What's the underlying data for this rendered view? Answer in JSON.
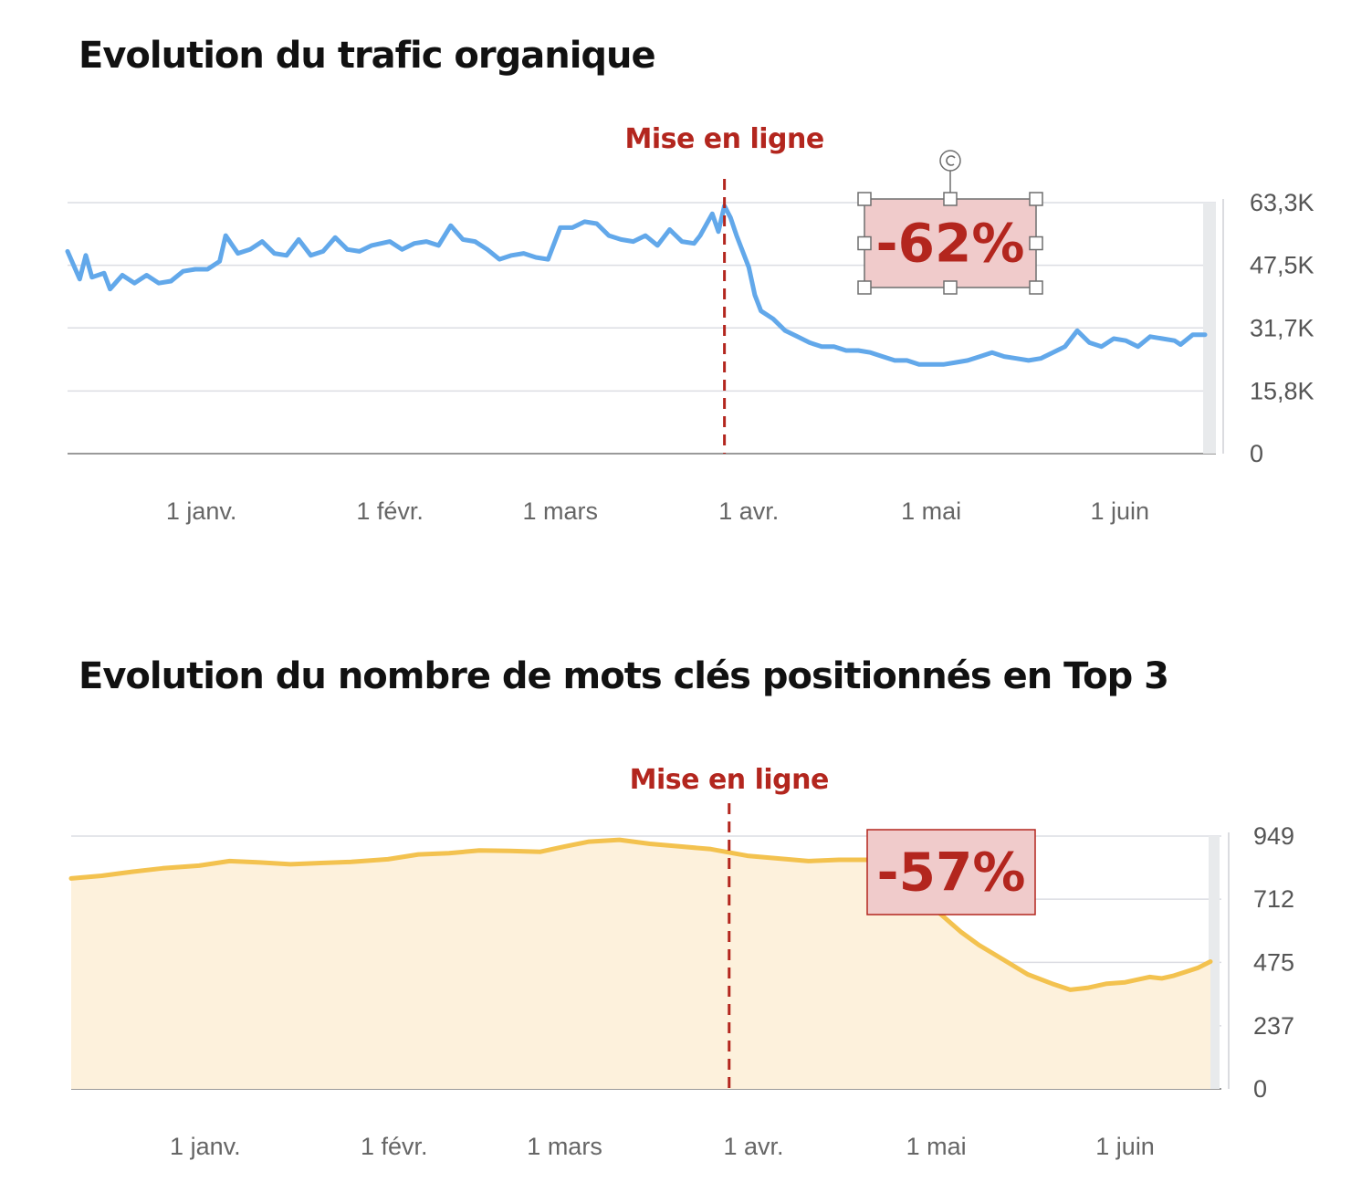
{
  "charts": [
    {
      "title": "Evolution du trafic organique",
      "marker_label": "Mise en ligne",
      "change_badge": "-62%",
      "badge_selected": true,
      "line_color": "#62a8ea",
      "fill_color": null
    },
    {
      "title": "Evolution du nombre de mots clés positionnés en Top 3",
      "marker_label": "Mise en ligne",
      "change_badge": "-57%",
      "badge_selected": false,
      "line_color": "#f3c24f",
      "fill_color": "#fdf1dc"
    }
  ],
  "chart_data": [
    {
      "type": "line",
      "title": "Evolution du trafic organique",
      "x_type": "date",
      "x_range": [
        "2020-12-10",
        "2021-06-15"
      ],
      "x_ticks": [
        {
          "date": "2021-01-01",
          "label": "1 janv."
        },
        {
          "date": "2021-02-01",
          "label": "1 févr."
        },
        {
          "date": "2021-03-01",
          "label": "1 mars"
        },
        {
          "date": "2021-04-01",
          "label": "1 avr."
        },
        {
          "date": "2021-05-01",
          "label": "1 mai"
        },
        {
          "date": "2021-06-01",
          "label": "1 juin"
        }
      ],
      "y_ticks": [
        {
          "value": 0,
          "label": "0"
        },
        {
          "value": 15800,
          "label": "15,8K"
        },
        {
          "value": 31700,
          "label": "31,7K"
        },
        {
          "value": 47500,
          "label": "47,5K"
        },
        {
          "value": 63300,
          "label": "63,3K"
        }
      ],
      "ylim": [
        0,
        63300
      ],
      "grid": true,
      "annotations": [
        {
          "type": "vline",
          "date": "2021-03-28",
          "label": "Mise en ligne"
        },
        {
          "type": "badge",
          "text": "-62%"
        }
      ],
      "series": [
        {
          "points": [
            [
              "2020-12-10",
              51000
            ],
            [
              "2020-12-12",
              44000
            ],
            [
              "2020-12-13",
              50000
            ],
            [
              "2020-12-14",
              44500
            ],
            [
              "2020-12-16",
              45500
            ],
            [
              "2020-12-17",
              41500
            ],
            [
              "2020-12-19",
              45000
            ],
            [
              "2020-12-21",
              43000
            ],
            [
              "2020-12-23",
              45000
            ],
            [
              "2020-12-25",
              43000
            ],
            [
              "2020-12-27",
              43500
            ],
            [
              "2020-12-29",
              46000
            ],
            [
              "2020-12-31",
              46500
            ],
            [
              "2021-01-02",
              46500
            ],
            [
              "2021-01-04",
              48500
            ],
            [
              "2021-01-05",
              55000
            ],
            [
              "2021-01-07",
              50500
            ],
            [
              "2021-01-09",
              51500
            ],
            [
              "2021-01-11",
              53500
            ],
            [
              "2021-01-13",
              50500
            ],
            [
              "2021-01-15",
              50000
            ],
            [
              "2021-01-17",
              54000
            ],
            [
              "2021-01-19",
              50000
            ],
            [
              "2021-01-21",
              51000
            ],
            [
              "2021-01-23",
              54500
            ],
            [
              "2021-01-25",
              51500
            ],
            [
              "2021-01-27",
              51000
            ],
            [
              "2021-01-29",
              52500
            ],
            [
              "2021-02-01",
              53500
            ],
            [
              "2021-02-03",
              51500
            ],
            [
              "2021-02-05",
              53000
            ],
            [
              "2021-02-07",
              53500
            ],
            [
              "2021-02-09",
              52500
            ],
            [
              "2021-02-11",
              57500
            ],
            [
              "2021-02-13",
              54000
            ],
            [
              "2021-02-15",
              53500
            ],
            [
              "2021-02-17",
              51500
            ],
            [
              "2021-02-19",
              49000
            ],
            [
              "2021-02-21",
              50000
            ],
            [
              "2021-02-23",
              50500
            ],
            [
              "2021-02-25",
              49500
            ],
            [
              "2021-02-27",
              49000
            ],
            [
              "2021-03-01",
              57000
            ],
            [
              "2021-03-03",
              57000
            ],
            [
              "2021-03-05",
              58500
            ],
            [
              "2021-03-07",
              58000
            ],
            [
              "2021-03-09",
              55000
            ],
            [
              "2021-03-11",
              54000
            ],
            [
              "2021-03-13",
              53500
            ],
            [
              "2021-03-15",
              55000
            ],
            [
              "2021-03-17",
              52500
            ],
            [
              "2021-03-19",
              56500
            ],
            [
              "2021-03-21",
              53500
            ],
            [
              "2021-03-23",
              53000
            ],
            [
              "2021-03-24",
              55000
            ],
            [
              "2021-03-26",
              60500
            ],
            [
              "2021-03-27",
              56000
            ],
            [
              "2021-03-28",
              62500
            ],
            [
              "2021-03-29",
              59500
            ],
            [
              "2021-03-30",
              55000
            ],
            [
              "2021-04-01",
              47000
            ],
            [
              "2021-04-02",
              40000
            ],
            [
              "2021-04-03",
              36000
            ],
            [
              "2021-04-05",
              34000
            ],
            [
              "2021-04-07",
              31000
            ],
            [
              "2021-04-09",
              29500
            ],
            [
              "2021-04-11",
              28000
            ],
            [
              "2021-04-13",
              27000
            ],
            [
              "2021-04-15",
              27000
            ],
            [
              "2021-04-17",
              26000
            ],
            [
              "2021-04-19",
              26000
            ],
            [
              "2021-04-21",
              25500
            ],
            [
              "2021-04-23",
              24500
            ],
            [
              "2021-04-25",
              23500
            ],
            [
              "2021-04-27",
              23500
            ],
            [
              "2021-04-29",
              22500
            ],
            [
              "2021-05-01",
              22500
            ],
            [
              "2021-05-03",
              22500
            ],
            [
              "2021-05-05",
              23000
            ],
            [
              "2021-05-07",
              23500
            ],
            [
              "2021-05-09",
              24500
            ],
            [
              "2021-05-11",
              25500
            ],
            [
              "2021-05-13",
              24500
            ],
            [
              "2021-05-15",
              24000
            ],
            [
              "2021-05-17",
              23500
            ],
            [
              "2021-05-19",
              24000
            ],
            [
              "2021-05-21",
              25500
            ],
            [
              "2021-05-23",
              27000
            ],
            [
              "2021-05-25",
              31000
            ],
            [
              "2021-05-27",
              28000
            ],
            [
              "2021-05-29",
              27000
            ],
            [
              "2021-05-31",
              29000
            ],
            [
              "2021-06-02",
              28500
            ],
            [
              "2021-06-04",
              27000
            ],
            [
              "2021-06-06",
              29500
            ],
            [
              "2021-06-08",
              29000
            ],
            [
              "2021-06-10",
              28500
            ],
            [
              "2021-06-11",
              27500
            ],
            [
              "2021-06-13",
              30000
            ],
            [
              "2021-06-15",
              30000
            ]
          ]
        }
      ]
    },
    {
      "type": "area",
      "title": "Evolution du nombre de mots clés positionnés en Top 3",
      "x_type": "date",
      "x_range": [
        "2020-12-10",
        "2021-06-15"
      ],
      "x_ticks": [
        {
          "date": "2021-01-01",
          "label": "1 janv."
        },
        {
          "date": "2021-02-01",
          "label": "1 févr."
        },
        {
          "date": "2021-03-01",
          "label": "1 mars"
        },
        {
          "date": "2021-04-01",
          "label": "1 avr."
        },
        {
          "date": "2021-05-01",
          "label": "1 mai"
        },
        {
          "date": "2021-06-01",
          "label": "1 juin"
        }
      ],
      "y_ticks": [
        {
          "value": 0,
          "label": "0"
        },
        {
          "value": 237,
          "label": "237"
        },
        {
          "value": 475,
          "label": "475"
        },
        {
          "value": 712,
          "label": "712"
        },
        {
          "value": 949,
          "label": "949"
        }
      ],
      "ylim": [
        0,
        949
      ],
      "grid": true,
      "annotations": [
        {
          "type": "vline",
          "date": "2021-03-28",
          "label": "Mise en ligne"
        },
        {
          "type": "badge",
          "text": "-57%"
        }
      ],
      "series": [
        {
          "points": [
            [
              "2020-12-10",
              790
            ],
            [
              "2020-12-15",
              800
            ],
            [
              "2020-12-20",
              815
            ],
            [
              "2020-12-25",
              828
            ],
            [
              "2020-12-31",
              838
            ],
            [
              "2021-01-05",
              855
            ],
            [
              "2021-01-10",
              850
            ],
            [
              "2021-01-15",
              843
            ],
            [
              "2021-01-20",
              848
            ],
            [
              "2021-01-25",
              852
            ],
            [
              "2021-01-31",
              862
            ],
            [
              "2021-02-05",
              880
            ],
            [
              "2021-02-10",
              885
            ],
            [
              "2021-02-15",
              895
            ],
            [
              "2021-02-20",
              893
            ],
            [
              "2021-02-25",
              890
            ],
            [
              "2021-03-01",
              910
            ],
            [
              "2021-03-05",
              928
            ],
            [
              "2021-03-10",
              935
            ],
            [
              "2021-03-15",
              920
            ],
            [
              "2021-03-20",
              910
            ],
            [
              "2021-03-25",
              900
            ],
            [
              "2021-03-31",
              875
            ],
            [
              "2021-04-05",
              865
            ],
            [
              "2021-04-10",
              855
            ],
            [
              "2021-04-15",
              860
            ],
            [
              "2021-04-20",
              860
            ],
            [
              "2021-04-25",
              830
            ],
            [
              "2021-04-28",
              760
            ],
            [
              "2021-05-01",
              670
            ],
            [
              "2021-05-05",
              590
            ],
            [
              "2021-05-08",
              540
            ],
            [
              "2021-05-12",
              485
            ],
            [
              "2021-05-16",
              430
            ],
            [
              "2021-05-20",
              395
            ],
            [
              "2021-05-23",
              372
            ],
            [
              "2021-05-26",
              380
            ],
            [
              "2021-05-29",
              395
            ],
            [
              "2021-06-01",
              400
            ],
            [
              "2021-06-03",
              410
            ],
            [
              "2021-06-05",
              420
            ],
            [
              "2021-06-07",
              415
            ],
            [
              "2021-06-09",
              425
            ],
            [
              "2021-06-11",
              440
            ],
            [
              "2021-06-13",
              455
            ],
            [
              "2021-06-15",
              478
            ]
          ]
        }
      ]
    }
  ]
}
